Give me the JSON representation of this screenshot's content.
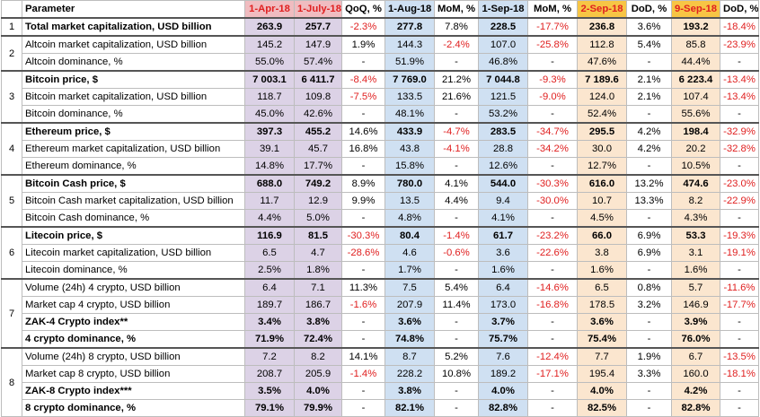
{
  "headers": [
    "",
    "Parameter",
    "1-Apr-18",
    "1-July-18",
    "QoQ, %",
    "1-Aug-18",
    "MoM, %",
    "1-Sep-18",
    "MoM, %",
    "2-Sep-18",
    "DoD, %",
    "9-Sep-18",
    "DoD, %"
  ],
  "groups": [
    {
      "num": "1",
      "rows": [
        {
          "name": "Total market capitalization, USD billion",
          "bold": true,
          "vals": [
            "263.9",
            "257.7",
            "-2.3%",
            "277.8",
            "7.8%",
            "228.5",
            "-17.7%",
            "236.8",
            "3.6%",
            "193.2",
            "-18.4%"
          ]
        }
      ]
    },
    {
      "num": "2",
      "rows": [
        {
          "name": "Altcoin market capitalization, USD billion",
          "bold": false,
          "vals": [
            "145.2",
            "147.9",
            "1.9%",
            "144.3",
            "-2.4%",
            "107.0",
            "-25.8%",
            "112.8",
            "5.4%",
            "85.8",
            "-23.9%"
          ]
        },
        {
          "name": "Altcoin dominance, %",
          "bold": false,
          "vals": [
            "55.0%",
            "57.4%",
            "-",
            "51.9%",
            "-",
            "46.8%",
            "-",
            "47.6%",
            "-",
            "44.4%",
            "-"
          ]
        }
      ]
    },
    {
      "num": "3",
      "rows": [
        {
          "name": "Bitcoin price, $",
          "bold": true,
          "vals": [
            "7 003.1",
            "6 411.7",
            "-8.4%",
            "7 769.0",
            "21.2%",
            "7 044.8",
            "-9.3%",
            "7 189.6",
            "2.1%",
            "6 223.4",
            "-13.4%"
          ]
        },
        {
          "name": "Bitcoin market capitalization, USD billion",
          "bold": false,
          "vals": [
            "118.7",
            "109.8",
            "-7.5%",
            "133.5",
            "21.6%",
            "121.5",
            "-9.0%",
            "124.0",
            "2.1%",
            "107.4",
            "-13.4%"
          ]
        },
        {
          "name": "Bitcoin dominance, %",
          "bold": false,
          "vals": [
            "45.0%",
            "42.6%",
            "-",
            "48.1%",
            "-",
            "53.2%",
            "-",
            "52.4%",
            "-",
            "55.6%",
            "-"
          ]
        }
      ]
    },
    {
      "num": "4",
      "rows": [
        {
          "name": "Ethereum price, $",
          "bold": true,
          "vals": [
            "397.3",
            "455.2",
            "14.6%",
            "433.9",
            "-4.7%",
            "283.5",
            "-34.7%",
            "295.5",
            "4.2%",
            "198.4",
            "-32.9%"
          ]
        },
        {
          "name": "Ethereum market capitalization, USD billion",
          "bold": false,
          "vals": [
            "39.1",
            "45.7",
            "16.8%",
            "43.8",
            "-4.1%",
            "28.8",
            "-34.2%",
            "30.0",
            "4.2%",
            "20.2",
            "-32.8%"
          ]
        },
        {
          "name": "Ethereum dominance, %",
          "bold": false,
          "vals": [
            "14.8%",
            "17.7%",
            "-",
            "15.8%",
            "-",
            "12.6%",
            "-",
            "12.7%",
            "-",
            "10.5%",
            "-"
          ]
        }
      ]
    },
    {
      "num": "5",
      "rows": [
        {
          "name": "Bitcoin Cash price, $",
          "bold": true,
          "vals": [
            "688.0",
            "749.2",
            "8.9%",
            "780.0",
            "4.1%",
            "544.0",
            "-30.3%",
            "616.0",
            "13.2%",
            "474.6",
            "-23.0%"
          ]
        },
        {
          "name": "Bitcoin Cash market capitalization, USD billion",
          "bold": false,
          "vals": [
            "11.7",
            "12.9",
            "9.9%",
            "13.5",
            "4.4%",
            "9.4",
            "-30.0%",
            "10.7",
            "13.3%",
            "8.2",
            "-22.9%"
          ]
        },
        {
          "name": "Bitcoin Cash dominance, %",
          "bold": false,
          "vals": [
            "4.4%",
            "5.0%",
            "-",
            "4.8%",
            "-",
            "4.1%",
            "-",
            "4.5%",
            "-",
            "4.3%",
            "-"
          ]
        }
      ]
    },
    {
      "num": "6",
      "rows": [
        {
          "name": "Litecoin price, $",
          "bold": true,
          "vals": [
            "116.9",
            "81.5",
            "-30.3%",
            "80.4",
            "-1.4%",
            "61.7",
            "-23.2%",
            "66.0",
            "6.9%",
            "53.3",
            "-19.3%"
          ]
        },
        {
          "name": "Litecoin market capitalization, USD billion",
          "bold": false,
          "vals": [
            "6.5",
            "4.7",
            "-28.6%",
            "4.6",
            "-0.6%",
            "3.6",
            "-22.6%",
            "3.8",
            "6.9%",
            "3.1",
            "-19.1%"
          ]
        },
        {
          "name": "Litecoin dominance, %",
          "bold": false,
          "vals": [
            "2.5%",
            "1.8%",
            "-",
            "1.7%",
            "-",
            "1.6%",
            "-",
            "1.6%",
            "-",
            "1.6%",
            "-"
          ]
        }
      ]
    },
    {
      "num": "7",
      "rows": [
        {
          "name": "Volume (24h) 4 crypto, USD billion",
          "bold": false,
          "vals": [
            "6.4",
            "7.1",
            "11.3%",
            "7.5",
            "5.4%",
            "6.4",
            "-14.6%",
            "6.5",
            "0.8%",
            "5.7",
            "-11.6%"
          ]
        },
        {
          "name": "Market cap 4 crypto, USD billion",
          "bold": false,
          "vals": [
            "189.7",
            "186.7",
            "-1.6%",
            "207.9",
            "11.4%",
            "173.0",
            "-16.8%",
            "178.5",
            "3.2%",
            "146.9",
            "-17.7%"
          ]
        },
        {
          "name": "ZAK-4 Crypto index**",
          "bold": true,
          "vals": [
            "3.4%",
            "3.8%",
            "-",
            "3.6%",
            "-",
            "3.7%",
            "-",
            "3.6%",
            "-",
            "3.9%",
            "-"
          ]
        },
        {
          "name": "4 crypto dominance, %",
          "bold": true,
          "vals": [
            "71.9%",
            "72.4%",
            "-",
            "74.8%",
            "-",
            "75.7%",
            "-",
            "75.4%",
            "-",
            "76.0%",
            "-"
          ]
        }
      ]
    },
    {
      "num": "8",
      "rows": [
        {
          "name": "Volume (24h) 8 crypto, USD billion",
          "bold": false,
          "vals": [
            "7.2",
            "8.2",
            "14.1%",
            "8.7",
            "5.2%",
            "7.6",
            "-12.4%",
            "7.7",
            "1.9%",
            "6.7",
            "-13.5%"
          ]
        },
        {
          "name": "Market cap 8 crypto, USD billion",
          "bold": false,
          "vals": [
            "208.7",
            "205.9",
            "-1.4%",
            "228.2",
            "10.8%",
            "189.2",
            "-17.1%",
            "195.4",
            "3.3%",
            "160.0",
            "-18.1%"
          ]
        },
        {
          "name": "ZAK-8 Crypto index***",
          "bold": true,
          "vals": [
            "3.5%",
            "4.0%",
            "-",
            "3.8%",
            "-",
            "4.0%",
            "-",
            "4.0%",
            "-",
            "4.2%",
            "-"
          ]
        },
        {
          "name": "8 crypto dominance, %",
          "bold": true,
          "vals": [
            "79.1%",
            "79.9%",
            "-",
            "82.1%",
            "-",
            "82.8%",
            "-",
            "82.5%",
            "-",
            "82.8%",
            "-"
          ]
        }
      ]
    }
  ],
  "colors": {
    "header_date_pink": "#f0bcc0",
    "col_lavender": "#dcd2e6",
    "col_blue": "#cfe0f2",
    "header_date_orange": "#f7c545",
    "col_peach": "#fbe6cf",
    "negative_red": "#e02020"
  }
}
